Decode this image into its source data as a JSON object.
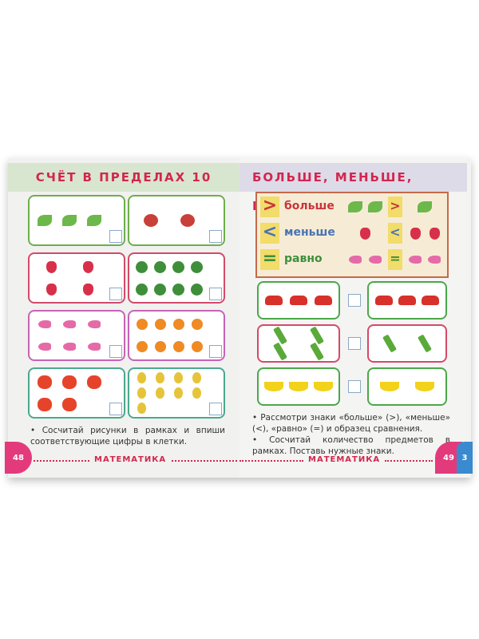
{
  "left_page": {
    "title": "СЧЁТ В ПРЕДЕЛАХ 10",
    "page_number": "48",
    "footer": "МАТЕМАТИКА",
    "instruction": "• Сосчитай рисунки в рамках и впиши соответствующие цифры в клетки.",
    "boxes": [
      {
        "item": "leaf",
        "count": 3,
        "color": "#6fae4a"
      },
      {
        "item": "ladybug",
        "count": 2,
        "color": "#6fae4a"
      },
      {
        "item": "strawberry",
        "count": 4,
        "color": "#d24a6a"
      },
      {
        "item": "watermelon",
        "count": 8,
        "color": "#d24a6a"
      },
      {
        "item": "fish",
        "count": 6,
        "color": "#c564b6"
      },
      {
        "item": "orange",
        "count": 8,
        "color": "#c564b6"
      },
      {
        "item": "apple",
        "count": 5,
        "color": "#4aa88e"
      },
      {
        "item": "pear",
        "count": 9,
        "color": "#4aa88e"
      }
    ]
  },
  "right_page": {
    "title": "БОЛЬШЕ, МЕНЬШЕ, РАВНО",
    "page_number": "49",
    "tab_number": "3",
    "footer": "МАТЕМАТИКА",
    "legend": [
      {
        "sign": ">",
        "word": "больше",
        "color": "#c9343a",
        "left": {
          "item": "leaf",
          "count": 2
        },
        "right": {
          "item": "leaf",
          "count": 1
        }
      },
      {
        "sign": "<",
        "word": "меньше",
        "color": "#4a73b4",
        "left": {
          "item": "strawberry",
          "count": 1
        },
        "right": {
          "item": "strawberry",
          "count": 2
        }
      },
      {
        "sign": "=",
        "word": "равно",
        "color": "#3f8e3a",
        "left": {
          "item": "fish",
          "count": 2
        },
        "right": {
          "item": "fish",
          "count": 2
        }
      }
    ],
    "instructions": [
      "• Рассмотри знаки «больше» (>), «меньше» (<), «равно» (=) и образец сравнения.",
      "• Сосчитай количество предметов в рамках. Поставь нужные знаки."
    ],
    "pairs": [
      {
        "item": "car",
        "left": 3,
        "right": 3,
        "color": "#4aa84a"
      },
      {
        "item": "pencil",
        "left": 4,
        "right": 2,
        "color": "#d24a6a"
      },
      {
        "item": "banana",
        "left": 3,
        "right": 2,
        "color": "#4aa84a"
      }
    ]
  },
  "colors": {
    "accent": "#d2264e",
    "pink_tab": "#e33a7c",
    "blue_tab": "#3a8ad0"
  }
}
